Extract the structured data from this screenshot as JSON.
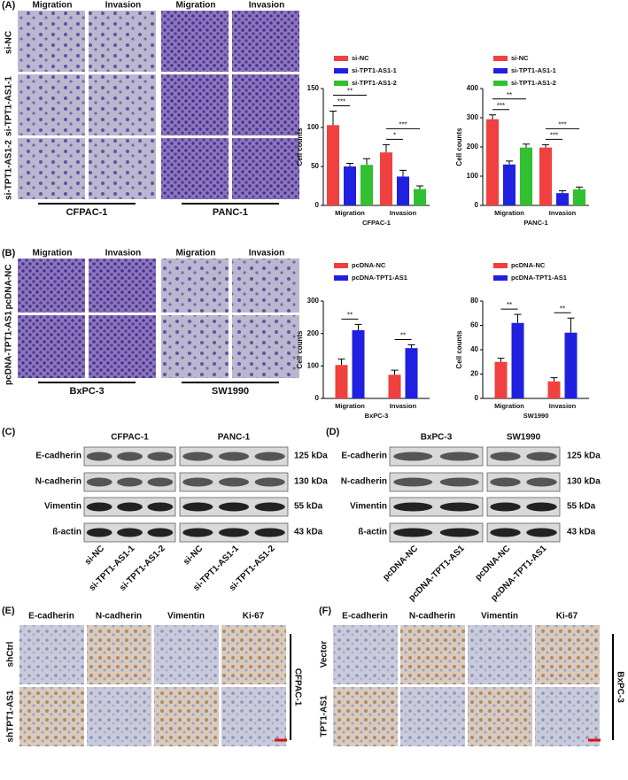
{
  "panels": [
    {
      "label": "(A)",
      "headers": [
        "Migration",
        "Invasion",
        "Migration",
        "Invasion"
      ],
      "rows": [
        "si-NC",
        "si-TPT1-AS1-1",
        "si-TPT1-AS1-2"
      ],
      "cell_lines": [
        "CFPAC-1",
        "PANC-1"
      ]
    },
    {
      "label": "(B)",
      "headers": [
        "Migration",
        "Invasion",
        "Migration",
        "Invasion"
      ],
      "rows": [
        "pcDNA-NC",
        "pcDNA-TPT1-AS1"
      ],
      "cell_lines": [
        "BxPC-3",
        "SW1990"
      ]
    }
  ],
  "blots": [
    {
      "label": "(C)",
      "groups": [
        "CFPAC-1",
        "PANC-1"
      ],
      "proteins": [
        "E-cadherin",
        "N-cadherin",
        "Vimentin",
        "ß-actin"
      ],
      "sizes": [
        "125 kDa",
        "130 kDa",
        "55  kDa",
        "43  kDa"
      ],
      "lanes": [
        "si-NC",
        "si-TPT1-AS1-1",
        "si-TPT1-AS1-2",
        "si-NC",
        "si-TPT1-AS1-1",
        "si-TPT1-AS1-2"
      ]
    },
    {
      "label": "(D)",
      "groups": [
        "BxPC-3",
        "SW1990"
      ],
      "proteins": [
        "E-cadherin",
        "N-cadherin",
        "Vimentin",
        "ß-actin"
      ],
      "sizes": [
        "125 kDa",
        "130 kDa",
        "55  kDa",
        "43  kDa"
      ],
      "lanes": [
        "pcDNA-NC",
        "pcDNA-TPT1-AS1",
        "pcDNA-NC",
        "pcDNA-TPT1-AS1"
      ]
    }
  ],
  "ihc": [
    {
      "label": "(E)",
      "headers": [
        "E-cadherin",
        "N-cadherin",
        "Vimentin",
        "Ki-67"
      ],
      "rows": [
        "shCtrl",
        "shTPT1-AS1"
      ],
      "cell_line": "CFPAC-1"
    },
    {
      "label": "(F)",
      "headers": [
        "E-cadherin",
        "N-cadherin",
        "Vimentin",
        "Ki-67"
      ],
      "rows": [
        "Vector",
        "TPT1-AS1"
      ],
      "cell_line": "BxPC-3"
    }
  ],
  "chart_data": [
    {
      "type": "bar",
      "x_label": "CFPAC-1",
      "y_label": "Cell counts",
      "categories": [
        "Migration",
        "Invasion"
      ],
      "ylim": [
        0,
        150
      ],
      "yticks": [
        0,
        50,
        100,
        150
      ],
      "series": [
        {
          "name": "si-NC",
          "color": "#f04040",
          "values": [
            103,
            68
          ],
          "errors": [
            18,
            10
          ]
        },
        {
          "name": "si-TPT1-AS1-1",
          "color": "#2020e0",
          "values": [
            50,
            37
          ],
          "errors": [
            4,
            8
          ]
        },
        {
          "name": "si-TPT1-AS1-2",
          "color": "#30c030",
          "values": [
            52,
            21
          ],
          "errors": [
            8,
            4
          ]
        }
      ],
      "significance": [
        [
          "***",
          "**"
        ],
        [
          "*",
          "***"
        ]
      ]
    },
    {
      "type": "bar",
      "x_label": "PANC-1",
      "y_label": "Cell counts",
      "categories": [
        "Migration",
        "Invasion"
      ],
      "ylim": [
        0,
        400
      ],
      "yticks": [
        0,
        100,
        200,
        300,
        400
      ],
      "series": [
        {
          "name": "si-NC",
          "color": "#f04040",
          "values": [
            295,
            198
          ],
          "errors": [
            15,
            10
          ]
        },
        {
          "name": "si-TPT1-AS1-1",
          "color": "#2020e0",
          "values": [
            140,
            42
          ],
          "errors": [
            12,
            8
          ]
        },
        {
          "name": "si-TPT1-AS1-2",
          "color": "#30c030",
          "values": [
            198,
            55
          ],
          "errors": [
            12,
            8
          ]
        }
      ],
      "significance": [
        [
          "***",
          "**"
        ],
        [
          "***",
          "***"
        ]
      ]
    },
    {
      "type": "bar",
      "x_label": "BxPC-3",
      "y_label": "Cell counts",
      "categories": [
        "Migration",
        "Invasion"
      ],
      "ylim": [
        0,
        300
      ],
      "yticks": [
        0,
        100,
        200,
        300
      ],
      "series": [
        {
          "name": "pcDNA-NC",
          "color": "#f04040",
          "values": [
            103,
            73
          ],
          "errors": [
            18,
            14
          ]
        },
        {
          "name": "pcDNA-TPT1-AS1",
          "color": "#2020e0",
          "values": [
            210,
            155
          ],
          "errors": [
            18,
            10
          ]
        }
      ],
      "significance": [
        [
          "**"
        ],
        [
          "**"
        ]
      ]
    },
    {
      "type": "bar",
      "x_label": "SW1990",
      "y_label": "Cell counts",
      "categories": [
        "Migration",
        "Invasion"
      ],
      "ylim": [
        0,
        80
      ],
      "yticks": [
        0,
        20,
        40,
        60,
        80
      ],
      "series": [
        {
          "name": "pcDNA-NC",
          "color": "#f04040",
          "values": [
            30,
            14
          ],
          "errors": [
            3,
            3
          ]
        },
        {
          "name": "pcDNA-TPT1-AS1",
          "color": "#2020e0",
          "values": [
            62,
            54
          ],
          "errors": [
            7,
            12
          ]
        }
      ],
      "significance": [
        [
          "**"
        ],
        [
          "**"
        ]
      ]
    }
  ]
}
